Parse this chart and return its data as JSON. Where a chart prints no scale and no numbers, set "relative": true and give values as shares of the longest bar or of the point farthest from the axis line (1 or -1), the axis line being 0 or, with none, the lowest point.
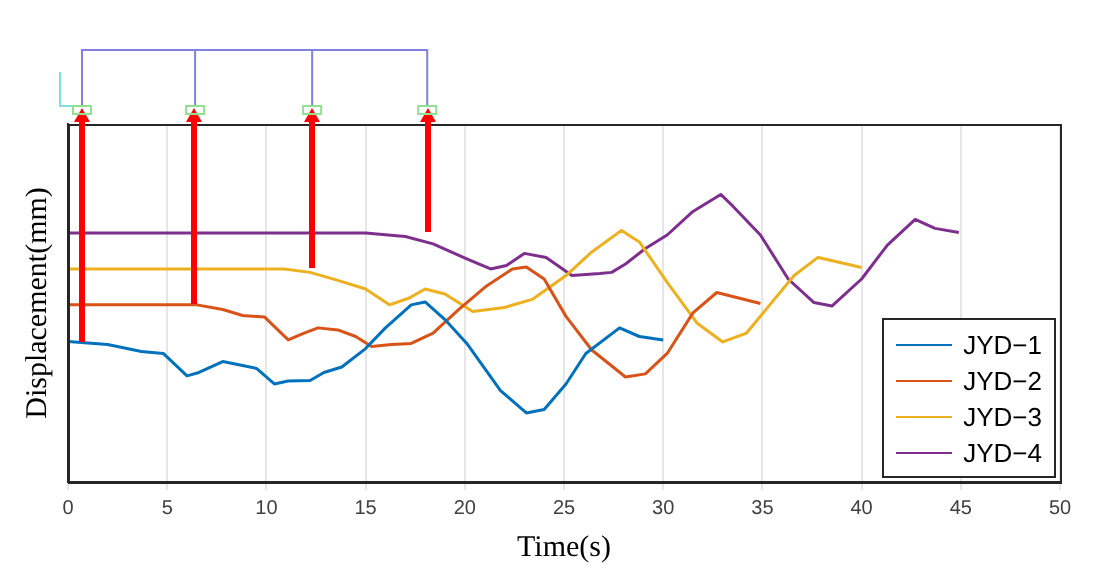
{
  "chart_data": {
    "type": "line",
    "xlabel": "Time(s)",
    "ylabel": "Displacement(mm)",
    "relative": true,
    "xlim": [
      0,
      50
    ],
    "xticks": [
      0,
      5,
      10,
      15,
      20,
      25,
      30,
      35,
      40,
      45,
      50
    ],
    "grid": "x",
    "legend": "bottom right",
    "marker": "none",
    "line_style": "solid",
    "series": [
      {
        "name": "JYD−1",
        "color": "#0072bd",
        "x": [
          0,
          2.0,
          3.7,
          4.8,
          6.0,
          6.6,
          7.8,
          8.8,
          9.5,
          10.4,
          11.1,
          12.2,
          12.9,
          13.8,
          15.0,
          16.0,
          17.3,
          18.0,
          19.0,
          20.1,
          21.8,
          23.1,
          24.0,
          25.1,
          26.1,
          27.8,
          28.8,
          30.0
        ],
        "values": [
          0.489,
          0.478,
          0.454,
          0.447,
          0.369,
          0.381,
          0.419,
          0.405,
          0.395,
          0.341,
          0.351,
          0.353,
          0.381,
          0.4,
          0.464,
          0.536,
          0.616,
          0.626,
          0.565,
          0.482,
          0.318,
          0.24,
          0.252,
          0.341,
          0.447,
          0.536,
          0.506,
          0.494
        ]
      },
      {
        "name": "JYD−2",
        "color": "#d95319",
        "x": [
          0,
          6.5,
          7.8,
          8.8,
          9.9,
          11.1,
          11.9,
          12.6,
          13.6,
          14.5,
          15.3,
          16.3,
          17.3,
          18.4,
          19.7,
          21.1,
          22.4,
          23.1,
          24.0,
          25.1,
          26.4,
          28.1,
          29.1,
          30.2,
          31.5,
          32.7,
          33.4,
          34.9
        ],
        "values": [
          0.616,
          0.616,
          0.6,
          0.579,
          0.574,
          0.494,
          0.518,
          0.536,
          0.529,
          0.506,
          0.471,
          0.478,
          0.482,
          0.518,
          0.6,
          0.682,
          0.741,
          0.748,
          0.706,
          0.576,
          0.459,
          0.365,
          0.376,
          0.447,
          0.588,
          0.659,
          0.647,
          0.621
        ]
      },
      {
        "name": "JYD−3",
        "color": "#edb120",
        "x": [
          0,
          10.9,
          12.2,
          13.6,
          15.0,
          16.2,
          17.2,
          18.0,
          19.0,
          20.4,
          22.0,
          23.4,
          25.1,
          26.4,
          27.9,
          28.8,
          30.2,
          31.7,
          33.0,
          34.2,
          35.6,
          36.6,
          37.8,
          38.8,
          40.0
        ],
        "values": [
          0.741,
          0.741,
          0.729,
          0.701,
          0.671,
          0.616,
          0.64,
          0.671,
          0.654,
          0.593,
          0.607,
          0.635,
          0.718,
          0.8,
          0.875,
          0.835,
          0.694,
          0.553,
          0.487,
          0.518,
          0.635,
          0.718,
          0.781,
          0.765,
          0.746
        ]
      },
      {
        "name": "JYD−4",
        "color": "#7e2f8e",
        "x": [
          0,
          15.0,
          17.0,
          18.4,
          20.1,
          21.3,
          22.1,
          23.0,
          24.1,
          25.4,
          26.8,
          27.4,
          28.1,
          29.1,
          30.2,
          31.5,
          32.9,
          33.5,
          34.9,
          36.3,
          37.6,
          38.5,
          40.0,
          41.3,
          42.7,
          43.7,
          44.9
        ],
        "values": [
          0.866,
          0.866,
          0.854,
          0.828,
          0.776,
          0.741,
          0.753,
          0.795,
          0.781,
          0.718,
          0.725,
          0.729,
          0.758,
          0.812,
          0.859,
          0.941,
          1.0,
          0.96,
          0.859,
          0.706,
          0.624,
          0.612,
          0.706,
          0.824,
          0.913,
          0.882,
          0.868
        ]
      }
    ]
  }
}
